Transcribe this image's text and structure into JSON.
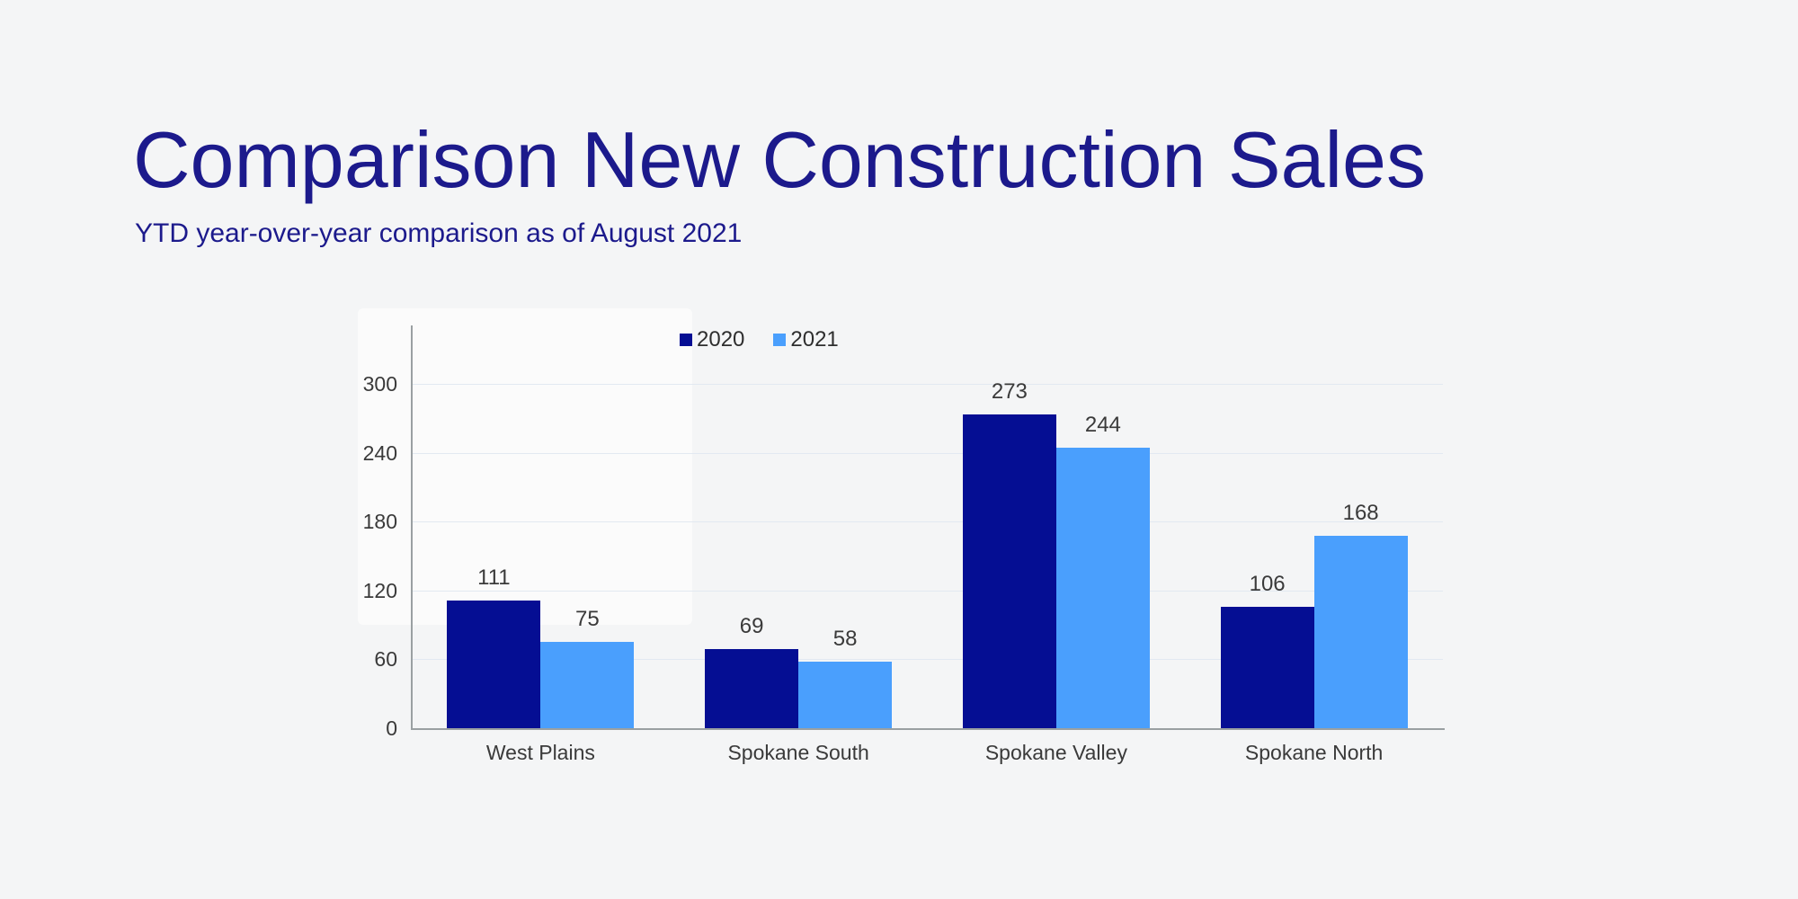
{
  "header": {
    "title": "Comparison New Construction Sales",
    "subtitle": "YTD year-over-year comparison as of August 2021"
  },
  "colors": {
    "background": "#f4f5f6",
    "heading": "#1c1a8c",
    "axis_line": "#9aa0a2",
    "gridline": "#e2e9f1",
    "label_text": "#3a3a3a",
    "series_2020": "#050e93",
    "series_2021": "#4a9ffd"
  },
  "chart_data": {
    "type": "bar",
    "title": "Comparison New Construction Sales",
    "subtitle": "YTD year-over-year comparison as of August 2021",
    "categories": [
      "West Plains",
      "Spokane South",
      "Spokane Valley",
      "Spokane North"
    ],
    "series": [
      {
        "name": "2020",
        "color": "#050e93",
        "values": [
          111,
          69,
          273,
          106
        ]
      },
      {
        "name": "2021",
        "color": "#4a9ffd",
        "values": [
          75,
          58,
          244,
          168
        ]
      }
    ],
    "y_ticks": [
      0,
      60,
      120,
      180,
      240,
      300
    ],
    "ylim": [
      0,
      300
    ],
    "xlabel": "",
    "ylabel": "",
    "grid": true,
    "value_labels": true,
    "legend_position": "top"
  }
}
